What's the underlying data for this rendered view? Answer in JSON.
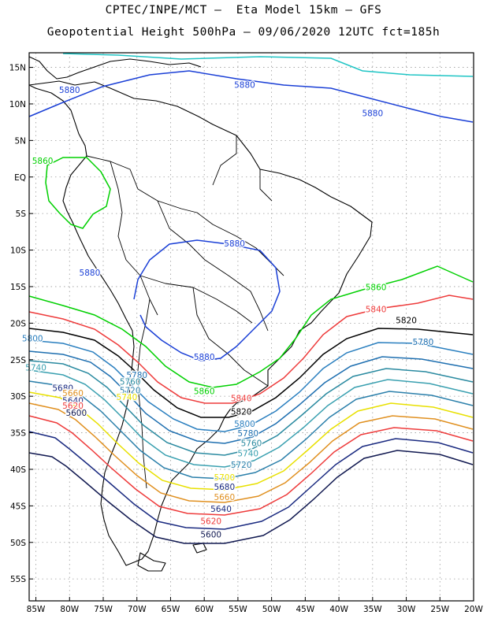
{
  "title_line1": "CPTEC/INPE/MCT –  Eta Model 15km – GFS",
  "title_line2": "Geopotential Height 500hPa – 09/06/2020 12UTC fct=185h",
  "lat_labels": [
    "15N",
    "10N",
    "5N",
    "EQ",
    "5S",
    "10S",
    "15S",
    "20S",
    "25S",
    "30S",
    "35S",
    "40S",
    "45S",
    "50S",
    "55S"
  ],
  "lon_labels": [
    "85W",
    "80W",
    "75W",
    "70W",
    "65W",
    "60W",
    "55W",
    "50W",
    "45W",
    "40W",
    "35W",
    "30W",
    "25W",
    "20W"
  ],
  "map_data": {
    "type": "contour",
    "variable": "Geopotential Height 500hPa",
    "extent": {
      "lon": [
        -86,
        -20
      ],
      "lat": [
        -58,
        17
      ]
    },
    "grid": "dotted",
    "contours": [
      {
        "level": "5880",
        "color": "#1a3fd6"
      },
      {
        "level": "5860",
        "color": "#00d000"
      },
      {
        "level": "5840",
        "color": "#ee3b3b"
      },
      {
        "level": "5820",
        "color": "#000000"
      },
      {
        "level": "5800",
        "color": "#2a7fbf"
      },
      {
        "level": "5780",
        "color": "#1e6fb0"
      },
      {
        "level": "5760",
        "color": "#2a8aa0"
      },
      {
        "level": "5740",
        "color": "#3aa0b0"
      },
      {
        "level": "5720",
        "color": "#2a7faa"
      },
      {
        "level": "5700",
        "color": "#e8e000"
      },
      {
        "level": "5680",
        "color": "#e09020"
      },
      {
        "level": "5660",
        "color": "#ee3b3b"
      },
      {
        "level": "5640",
        "color": "#1a2a80"
      },
      {
        "level": "5620",
        "color": "#101850"
      }
    ],
    "labels": [
      {
        "text": "5880",
        "lon": -80,
        "lat": 11.5,
        "color": "#1a3fd6"
      },
      {
        "text": "5880",
        "lon": -54,
        "lat": 12.2,
        "color": "#1a3fd6"
      },
      {
        "text": "5880",
        "lon": -35,
        "lat": 8.3,
        "color": "#1a3fd6"
      },
      {
        "text": "5860",
        "lon": -84,
        "lat": 1.8,
        "color": "#00d000"
      },
      {
        "text": "5880",
        "lon": -55.5,
        "lat": -9.5,
        "color": "#1a3fd6"
      },
      {
        "text": "5880",
        "lon": -77,
        "lat": -13.5,
        "color": "#1a3fd6"
      },
      {
        "text": "5860",
        "lon": -34.5,
        "lat": -15.5,
        "color": "#00d000"
      },
      {
        "text": "5840",
        "lon": -34.5,
        "lat": -18.5,
        "color": "#ee3b3b"
      },
      {
        "text": "5820",
        "lon": -30,
        "lat": -20,
        "color": "#000000"
      },
      {
        "text": "5780",
        "lon": -27.5,
        "lat": -23,
        "color": "#1e6fb0"
      },
      {
        "text": "5800",
        "lon": -85.5,
        "lat": -22.5,
        "color": "#2a7fbf"
      },
      {
        "text": "5740",
        "lon": -85,
        "lat": -26.5,
        "color": "#3aa0b0"
      },
      {
        "text": "5880",
        "lon": -60,
        "lat": -25,
        "color": "#1a3fd6"
      },
      {
        "text": "5860",
        "lon": -60,
        "lat": -29.7,
        "color": "#00d000"
      },
      {
        "text": "5840",
        "lon": -54.5,
        "lat": -30.7,
        "color": "#ee3b3b"
      },
      {
        "text": "5820",
        "lon": -54.5,
        "lat": -32.5,
        "color": "#000000"
      },
      {
        "text": "5800",
        "lon": -54,
        "lat": -34.2,
        "color": "#2a7fbf"
      },
      {
        "text": "5780",
        "lon": -53.5,
        "lat": -35.5,
        "color": "#1e6fb0"
      },
      {
        "text": "5760",
        "lon": -53,
        "lat": -36.8,
        "color": "#2a8aa0"
      },
      {
        "text": "5740",
        "lon": -53.5,
        "lat": -38.2,
        "color": "#3aa0b0"
      },
      {
        "text": "5720",
        "lon": -54.5,
        "lat": -39.8,
        "color": "#2a7faa"
      },
      {
        "text": "5700",
        "lon": -57,
        "lat": -41.5,
        "color": "#e8e000"
      },
      {
        "text": "5680",
        "lon": -57,
        "lat": -42.8,
        "color": "#1a2a80"
      },
      {
        "text": "5660",
        "lon": -57,
        "lat": -44.2,
        "color": "#e09020"
      },
      {
        "text": "5640",
        "lon": -57.5,
        "lat": -45.8,
        "color": "#1a2a80"
      },
      {
        "text": "5620",
        "lon": -59,
        "lat": -47.5,
        "color": "#ee3b3b"
      },
      {
        "text": "5600",
        "lon": -59,
        "lat": -49.3,
        "color": "#101850"
      },
      {
        "text": "5780",
        "lon": -70,
        "lat": -27.5,
        "color": "#1e6fb0"
      },
      {
        "text": "5760",
        "lon": -71,
        "lat": -28.4,
        "color": "#2a8aa0"
      },
      {
        "text": "5720",
        "lon": -71,
        "lat": -29.6,
        "color": "#2a7faa"
      },
      {
        "text": "5680",
        "lon": -81,
        "lat": -29.3,
        "color": "#1a2a80"
      },
      {
        "text": "5660",
        "lon": -79.5,
        "lat": -30,
        "color": "#e09020"
      },
      {
        "text": "5640",
        "lon": -79.5,
        "lat": -31,
        "color": "#1a2a80"
      },
      {
        "text": "5620",
        "lon": -79.5,
        "lat": -31.7,
        "color": "#ee3b3b"
      },
      {
        "text": "5600",
        "lon": -79,
        "lat": -32.7,
        "color": "#101850"
      },
      {
        "text": "5740",
        "lon": -71.5,
        "lat": -30.5,
        "color": "#e8e000"
      }
    ]
  }
}
